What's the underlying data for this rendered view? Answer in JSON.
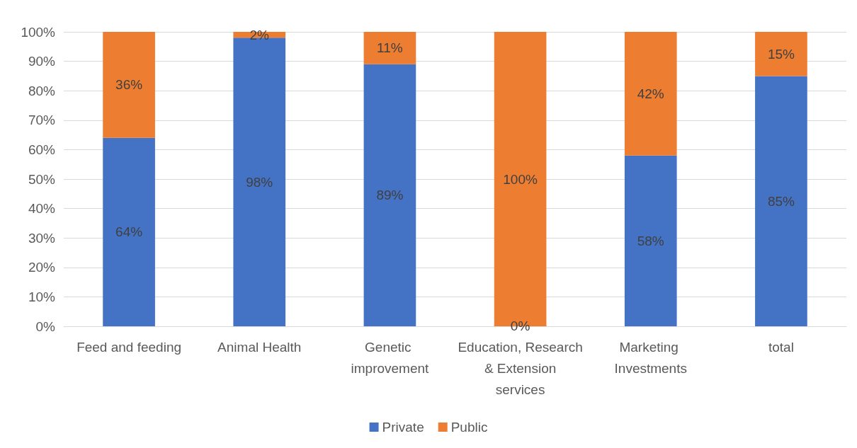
{
  "chart_data": {
    "type": "bar",
    "stacked": true,
    "categories": [
      "Feed and feeding",
      "Animal Health",
      "Genetic improvement",
      "Education, Research & Extension services",
      "Marketing Investments",
      "total"
    ],
    "series": [
      {
        "name": "Private",
        "color": "#4472c4",
        "values": [
          64,
          98,
          89,
          0,
          58,
          85
        ],
        "value_labels": [
          "64%",
          "98%",
          "89%",
          "0%",
          "58%",
          "85%"
        ]
      },
      {
        "name": "Public",
        "color": "#ed7d31",
        "values": [
          36,
          2,
          11,
          100,
          42,
          15
        ],
        "value_labels": [
          "36%",
          "2%",
          "11%",
          "100%",
          "42%",
          "15%"
        ]
      }
    ],
    "ylim": [
      0,
      100
    ],
    "yticks": [
      {
        "value": 0,
        "label": "0%"
      },
      {
        "value": 10,
        "label": "10%"
      },
      {
        "value": 20,
        "label": "20%"
      },
      {
        "value": 30,
        "label": "30%"
      },
      {
        "value": 40,
        "label": "40%"
      },
      {
        "value": 50,
        "label": "50%"
      },
      {
        "value": 60,
        "label": "60%"
      },
      {
        "value": 70,
        "label": "70%"
      },
      {
        "value": 80,
        "label": "80%"
      },
      {
        "value": 90,
        "label": "90%"
      },
      {
        "value": 100,
        "label": "100%"
      }
    ],
    "grid": true,
    "legend": "bottom"
  }
}
